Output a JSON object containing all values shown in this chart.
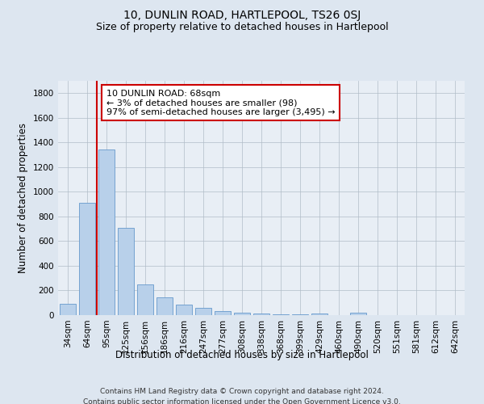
{
  "title": "10, DUNLIN ROAD, HARTLEPOOL, TS26 0SJ",
  "subtitle": "Size of property relative to detached houses in Hartlepool",
  "xlabel": "Distribution of detached houses by size in Hartlepool",
  "ylabel": "Number of detached properties",
  "categories": [
    "34sqm",
    "64sqm",
    "95sqm",
    "125sqm",
    "156sqm",
    "186sqm",
    "216sqm",
    "247sqm",
    "277sqm",
    "308sqm",
    "338sqm",
    "368sqm",
    "399sqm",
    "429sqm",
    "460sqm",
    "490sqm",
    "520sqm",
    "551sqm",
    "581sqm",
    "612sqm",
    "642sqm"
  ],
  "values": [
    90,
    910,
    1340,
    705,
    250,
    145,
    85,
    58,
    32,
    22,
    14,
    8,
    6,
    14,
    0,
    22,
    0,
    0,
    0,
    0,
    0
  ],
  "bar_color": "#b8d0ea",
  "bar_edge_color": "#6699cc",
  "vline_x_idx": 1,
  "vline_color": "#cc0000",
  "annotation_line1": "10 DUNLIN ROAD: 68sqm",
  "annotation_line2": "← 3% of detached houses are smaller (98)",
  "annotation_line3": "97% of semi-detached houses are larger (3,495) →",
  "annotation_box_color": "#ffffff",
  "annotation_box_edge": "#cc0000",
  "ylim": [
    0,
    1900
  ],
  "yticks": [
    0,
    200,
    400,
    600,
    800,
    1000,
    1200,
    1400,
    1600,
    1800
  ],
  "footer": "Contains HM Land Registry data © Crown copyright and database right 2024.\nContains public sector information licensed under the Open Government Licence v3.0.",
  "bg_color": "#dde6f0",
  "plot_bg_color": "#e8eef5",
  "grid_color": "#b0bcc8",
  "title_fontsize": 10,
  "subtitle_fontsize": 9,
  "axis_label_fontsize": 8.5,
  "tick_fontsize": 7.5,
  "footer_fontsize": 6.5,
  "annotation_fontsize": 8
}
